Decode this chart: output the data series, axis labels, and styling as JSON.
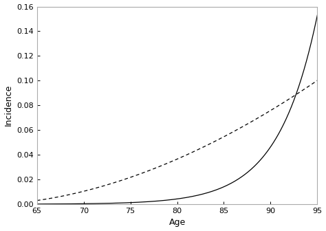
{
  "x_min": 65,
  "x_max": 95,
  "y_min": 0,
  "y_max": 0.16,
  "xlabel": "Age",
  "ylabel": "Incidence",
  "x_ticks": [
    65,
    70,
    75,
    80,
    85,
    90,
    95
  ],
  "y_ticks": [
    0,
    0.02,
    0.04,
    0.06,
    0.08,
    0.1,
    0.12,
    0.14,
    0.16
  ],
  "women_color": "#000000",
  "men_color": "#000000",
  "background_color": "#ffffff",
  "women_a": 0.00012,
  "women_b": 0.165,
  "men_a": 0.0025,
  "men_b": 0.118,
  "line_width": 0.9
}
